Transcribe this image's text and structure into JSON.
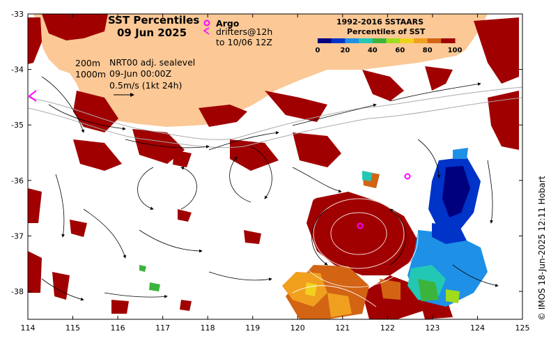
{
  "title": {
    "line1": "SST Percentiles",
    "line2": "09 Jun 2025"
  },
  "legend": {
    "argo_label": "Argo",
    "drifters_line1": "drifters@12h",
    "drifters_line2": "to 10/06 12Z"
  },
  "info": {
    "depth1": "200m",
    "depth2": "1000m",
    "line1": "NRT00 adj. sealevel",
    "line2": "09-Jun 00:00Z",
    "line3": "0.5m/s (1kt 24h)"
  },
  "colorbar": {
    "title1": "1992-2016 SSTAARS",
    "title2": "Percentiles of SST",
    "ticks": [
      "0",
      "20",
      "40",
      "60",
      "80",
      "100"
    ],
    "colors": [
      "#00007f",
      "#0033c8",
      "#1e90e6",
      "#22c8b4",
      "#3cb43c",
      "#a0dc1e",
      "#f0d21e",
      "#f0a01e",
      "#d26414",
      "#a00000"
    ]
  },
  "axes": {
    "x_ticks": [
      "114",
      "115",
      "116",
      "117",
      "118",
      "119",
      "120",
      "121",
      "122",
      "123",
      "124",
      "125"
    ],
    "y_ticks": [
      "-33",
      "-34",
      "-35",
      "-36",
      "-37",
      "-38"
    ]
  },
  "credit": "© IMOS 18-Jun-2025 12:11 Hobart",
  "colors": {
    "land": "#fbc896",
    "hot": "#a00000",
    "argo": "#ff00ff"
  }
}
